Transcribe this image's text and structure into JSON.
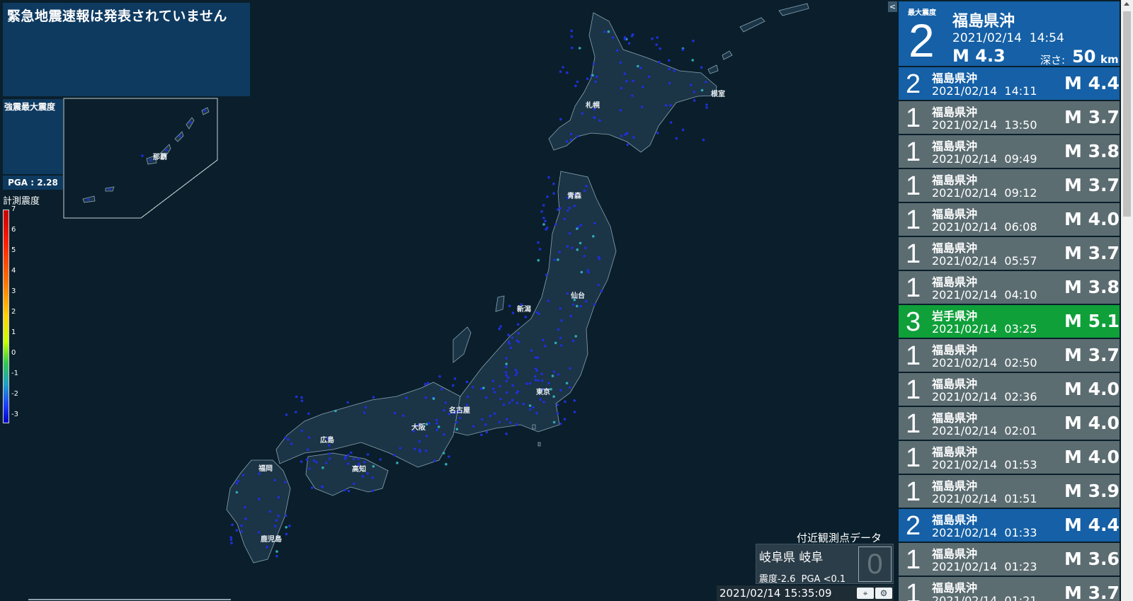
{
  "eew": {
    "status_text": "緊急地震速報は発表されていません"
  },
  "strong_motion": {
    "label": "強震最大震度",
    "pga": "PGA : 2.28"
  },
  "scale": {
    "title": "計測震度",
    "ticks": [
      "7",
      "6",
      "5",
      "4",
      "3",
      "2",
      "1",
      "0",
      "-1",
      "-2",
      "-3"
    ]
  },
  "map": {
    "cities": [
      {
        "key": "sapporo",
        "name": "札幌"
      },
      {
        "key": "nemuro",
        "name": "根室"
      },
      {
        "key": "aomori",
        "name": "青森"
      },
      {
        "key": "sendai",
        "name": "仙台"
      },
      {
        "key": "niigata",
        "name": "新潟"
      },
      {
        "key": "tokyo",
        "name": "東京"
      },
      {
        "key": "nagoya",
        "name": "名古屋"
      },
      {
        "key": "osaka",
        "name": "大阪"
      },
      {
        "key": "hiroshima",
        "name": "広島"
      },
      {
        "key": "kochi",
        "name": "高知"
      },
      {
        "key": "fukuoka",
        "name": "福岡"
      },
      {
        "key": "kagoshima",
        "name": "鹿児島"
      },
      {
        "key": "naha",
        "name": "那覇"
      }
    ]
  },
  "latest": {
    "max_shindo_label": "最大震度",
    "shindo": "2",
    "region": "福島県沖",
    "time": "2021/02/14  14:54",
    "magnitude": "M 4.3",
    "depth_label": "深さ:",
    "depth_value": "50",
    "depth_unit": "km"
  },
  "earthquakes": [
    {
      "shindo": "2",
      "region": "福島県沖",
      "time": "2021/02/14  14:11",
      "mag": "M 4.4"
    },
    {
      "shindo": "1",
      "region": "福島県沖",
      "time": "2021/02/14  13:50",
      "mag": "M 3.7"
    },
    {
      "shindo": "1",
      "region": "福島県沖",
      "time": "2021/02/14  09:49",
      "mag": "M 3.8"
    },
    {
      "shindo": "1",
      "region": "福島県沖",
      "time": "2021/02/14  09:12",
      "mag": "M 3.7"
    },
    {
      "shindo": "1",
      "region": "福島県沖",
      "time": "2021/02/14  06:08",
      "mag": "M 4.0"
    },
    {
      "shindo": "1",
      "region": "福島県沖",
      "time": "2021/02/14  05:57",
      "mag": "M 3.7"
    },
    {
      "shindo": "1",
      "region": "福島県沖",
      "time": "2021/02/14  04:10",
      "mag": "M 3.8"
    },
    {
      "shindo": "3",
      "region": "岩手県沖",
      "time": "2021/02/14  03:25",
      "mag": "M 5.1"
    },
    {
      "shindo": "1",
      "region": "福島県沖",
      "time": "2021/02/14  02:50",
      "mag": "M 3.7"
    },
    {
      "shindo": "1",
      "region": "福島県沖",
      "time": "2021/02/14  02:36",
      "mag": "M 4.0"
    },
    {
      "shindo": "1",
      "region": "福島県沖",
      "time": "2021/02/14  02:01",
      "mag": "M 4.0"
    },
    {
      "shindo": "1",
      "region": "福島県沖",
      "time": "2021/02/14  01:53",
      "mag": "M 4.0"
    },
    {
      "shindo": "1",
      "region": "福島県沖",
      "time": "2021/02/14  01:51",
      "mag": "M 3.9"
    },
    {
      "shindo": "2",
      "region": "福島県沖",
      "time": "2021/02/14  01:33",
      "mag": "M 4.4"
    },
    {
      "shindo": "1",
      "region": "福島県沖",
      "time": "2021/02/14  01:23",
      "mag": "M 3.6"
    },
    {
      "shindo": "1",
      "region": "福島県沖",
      "time": "2021/02/14  01:21",
      "mag": "M 3.7"
    }
  ],
  "observation": {
    "title": "付近観測点データ",
    "station": "岐阜県 岐阜",
    "intensity_text": "震度-2.6  PGA <0.1",
    "shindo_box": "0"
  },
  "clock": {
    "time": "2021/02/14 15:35:09"
  },
  "ui": {
    "collapse_label": "<"
  },
  "colors": {
    "background": "#0a1f2b",
    "land": "#1b3446",
    "panel": "#0e3a60",
    "shindo1": "#5c6d72",
    "shindo2": "#1560a6",
    "shindo3": "#0fa03a",
    "station_low": "#1f2fd8",
    "station_mid": "#2fa9b6"
  }
}
